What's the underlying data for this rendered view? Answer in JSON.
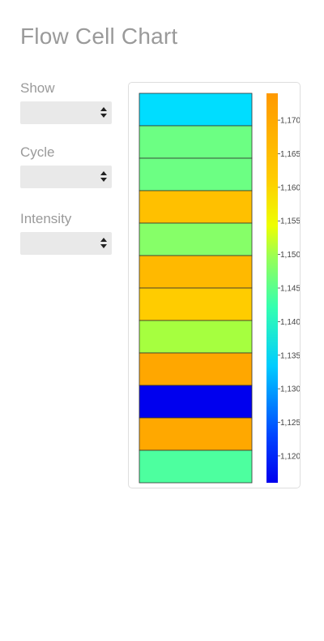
{
  "page": {
    "title": "Flow Cell Chart"
  },
  "controls": {
    "show": {
      "label": "Show",
      "value": ""
    },
    "cycle": {
      "label": "Cycle",
      "value": ""
    },
    "intensity": {
      "label": "Intensity",
      "value": ""
    }
  },
  "chart_data": {
    "type": "heatmap",
    "title": "",
    "xlabel": "",
    "ylabel": "",
    "cells": [
      {
        "value": 1.1325,
        "color": "#00ddff"
      },
      {
        "value": 1.1435,
        "color": "#6cff83"
      },
      {
        "value": 1.1435,
        "color": "#6cff83"
      },
      {
        "value": 1.1625,
        "color": "#ffc000"
      },
      {
        "value": 1.1455,
        "color": "#86ff68"
      },
      {
        "value": 1.1635,
        "color": "#ffb900"
      },
      {
        "value": 1.1605,
        "color": "#ffcc00"
      },
      {
        "value": 1.1495,
        "color": "#a6ff3f"
      },
      {
        "value": 1.1655,
        "color": "#ffa700"
      },
      {
        "value": 1.12,
        "color": "#0000ee"
      },
      {
        "value": 1.165,
        "color": "#ffa800"
      },
      {
        "value": 1.14,
        "color": "#4dff9f"
      }
    ],
    "colorbar": {
      "range": [
        1.116,
        1.174
      ],
      "ticks": [
        {
          "value": 1.12,
          "label": "1,120"
        },
        {
          "value": 1.125,
          "label": "1,125"
        },
        {
          "value": 1.13,
          "label": "1,130"
        },
        {
          "value": 1.135,
          "label": "1,135"
        },
        {
          "value": 1.14,
          "label": "1,140"
        },
        {
          "value": 1.145,
          "label": "1,145"
        },
        {
          "value": 1.15,
          "label": "1,150"
        },
        {
          "value": 1.155,
          "label": "1,155"
        },
        {
          "value": 1.16,
          "label": "1,160"
        },
        {
          "value": 1.165,
          "label": "1,165"
        },
        {
          "value": 1.17,
          "label": "1,170"
        }
      ],
      "colorscale": [
        {
          "stop": 0.0,
          "color": "#0000ee"
        },
        {
          "stop": 0.12,
          "color": "#0044ff"
        },
        {
          "stop": 0.3,
          "color": "#00ccff"
        },
        {
          "stop": 0.45,
          "color": "#33ffb0"
        },
        {
          "stop": 0.58,
          "color": "#99ff55"
        },
        {
          "stop": 0.66,
          "color": "#eeff00"
        },
        {
          "stop": 0.78,
          "color": "#ffcc00"
        },
        {
          "stop": 1.0,
          "color": "#ff9900"
        }
      ]
    }
  }
}
